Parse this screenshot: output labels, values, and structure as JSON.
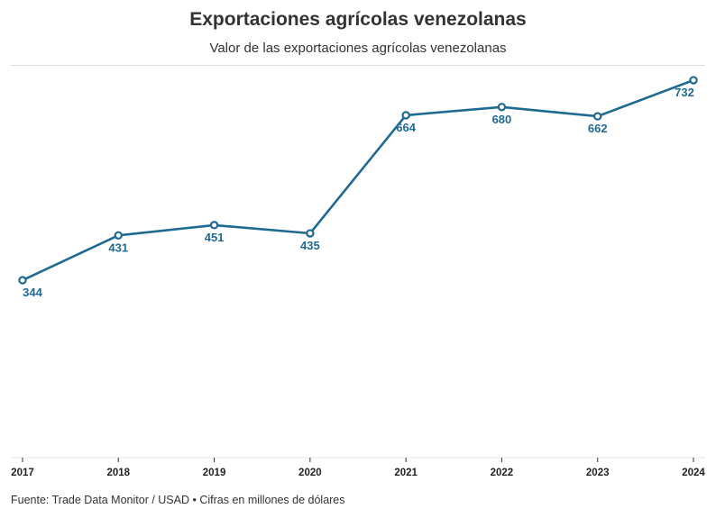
{
  "header": {
    "title": "Exportaciones agrícolas venezolanas",
    "subtitle": "Valor de las exportaciones agrícolas venezolanas"
  },
  "footer": {
    "source": "Fuente: Trade Data Monitor / USAD • Cifras en millones de dólares"
  },
  "colors": {
    "line": "#1f6a93",
    "label": "#1f6a93",
    "marker_fill": "#ffffff"
  },
  "chart_data": {
    "type": "line",
    "title": "Exportaciones agrícolas venezolanas",
    "subtitle": "Valor de las exportaciones agrícolas venezolanas",
    "categories": [
      "2017",
      "2018",
      "2019",
      "2020",
      "2021",
      "2022",
      "2023",
      "2024"
    ],
    "values": [
      344,
      431,
      451,
      435,
      664,
      680,
      662,
      732
    ],
    "data_labels": [
      "344",
      "431",
      "451",
      "435",
      "664",
      "680",
      "662",
      "732"
    ],
    "xlabel": "",
    "ylabel": "",
    "ylim": [
      0,
      760
    ],
    "grid": false,
    "legend": "none"
  }
}
